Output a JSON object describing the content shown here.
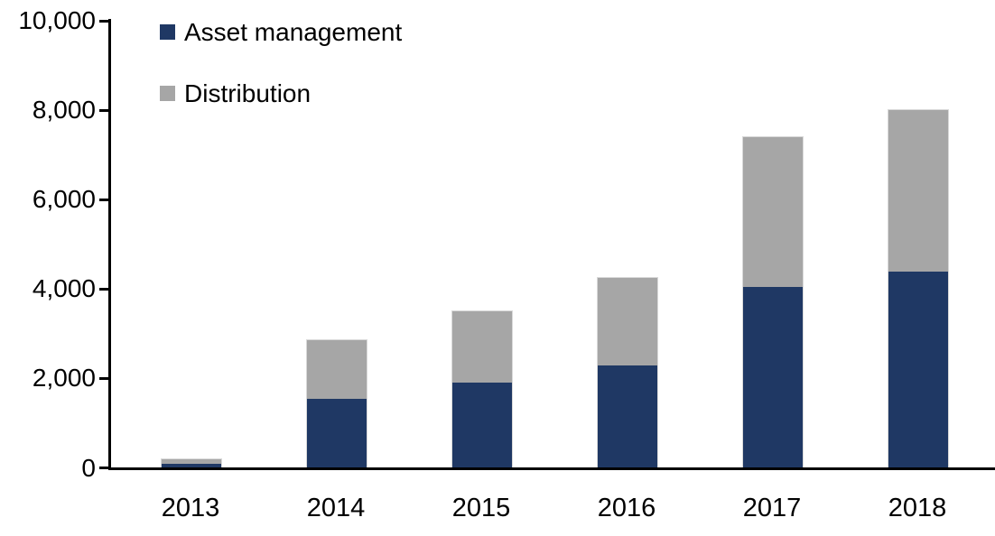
{
  "chart_data": {
    "type": "bar",
    "stacked": true,
    "title": "",
    "xlabel": "",
    "ylabel": "",
    "categories": [
      "2013",
      "2014",
      "2015",
      "2016",
      "2017",
      "2018"
    ],
    "series": [
      {
        "name": "Asset management",
        "color": "#1F3864",
        "values": [
          100,
          1550,
          1900,
          2300,
          4050,
          4400
        ]
      },
      {
        "name": "Distribution",
        "color": "#A6A6A6",
        "values": [
          100,
          1300,
          1600,
          1950,
          3350,
          3600
        ]
      }
    ],
    "ylim": [
      0,
      10000
    ],
    "yticks": [
      0,
      2000,
      4000,
      6000,
      8000,
      10000
    ],
    "ytick_labels": [
      "0",
      "2,000",
      "4,000",
      "6,000",
      "8,000",
      "10,000"
    ],
    "legend_position": "top-left",
    "grid": false,
    "axis_color": "#000000",
    "background_color": "#FFFFFF"
  }
}
